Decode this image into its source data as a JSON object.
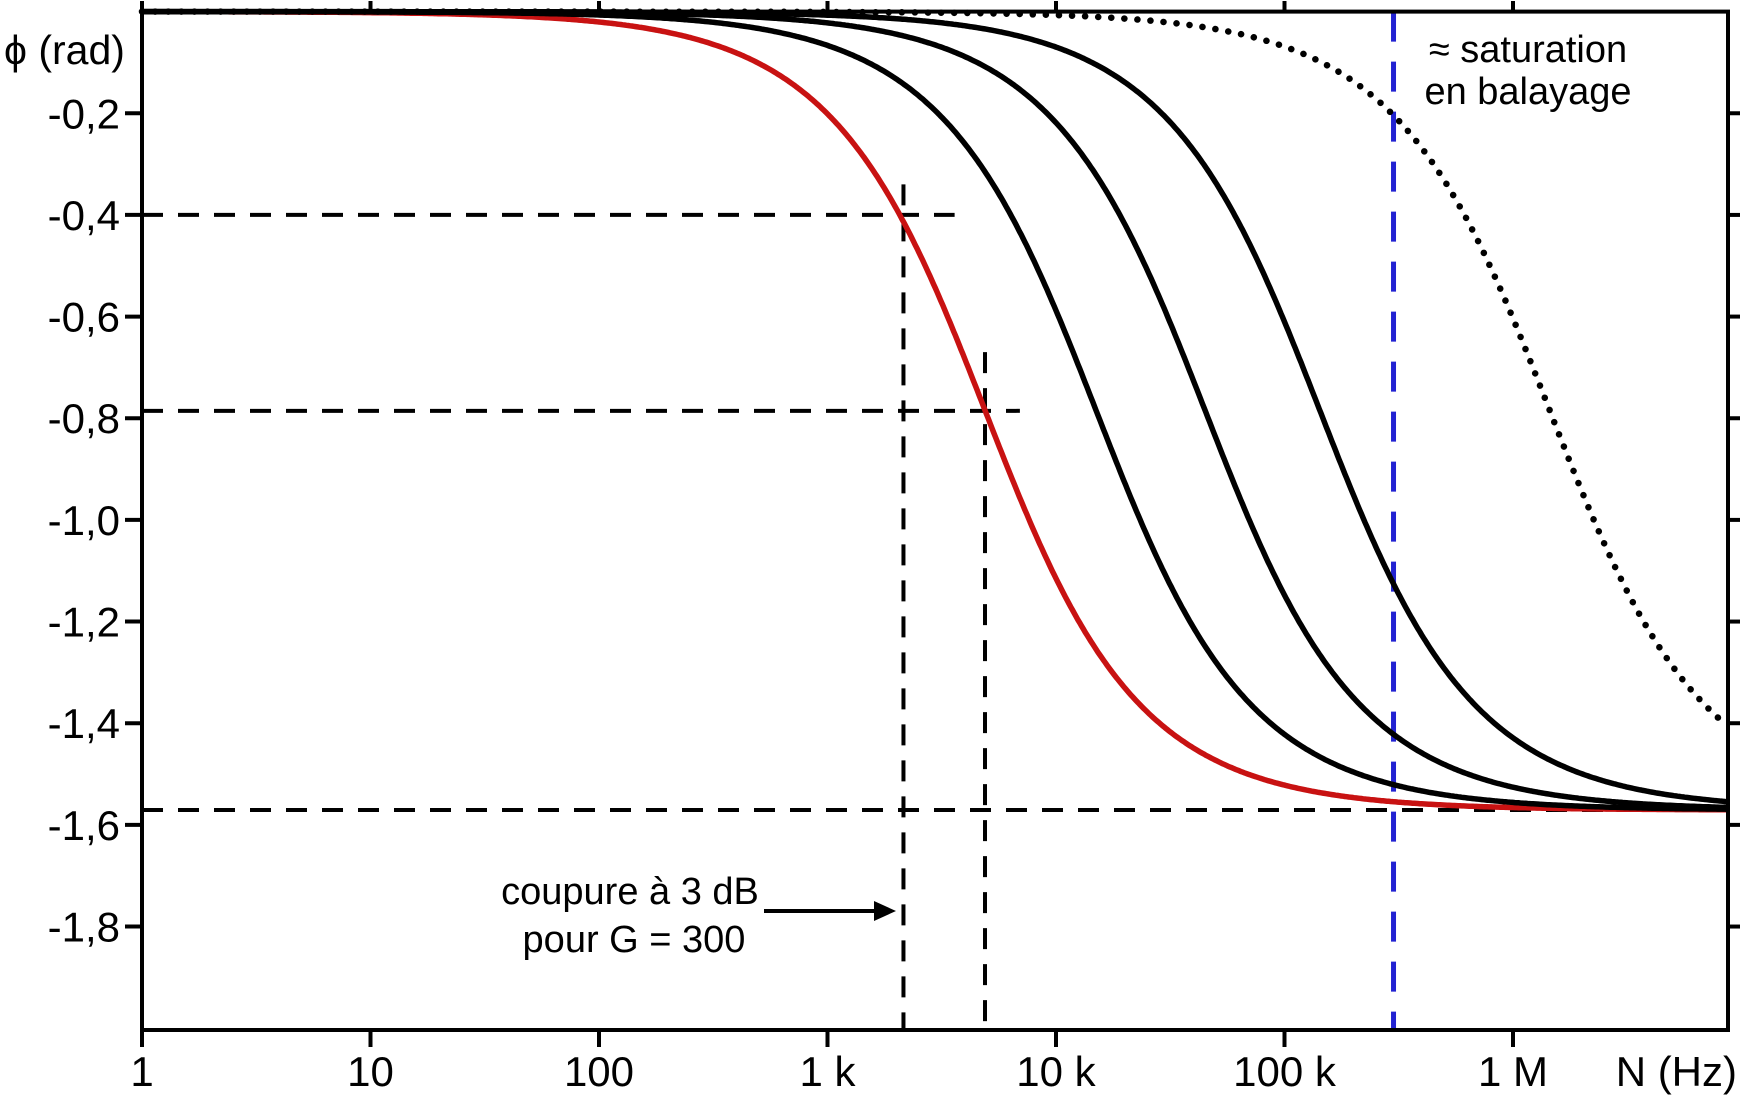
{
  "chart_data": {
    "type": "line",
    "title": "",
    "xlabel": "N  (Hz)",
    "ylabel": "ϕ  (rad)",
    "x_scale": "log",
    "x_range_hz": [
      1,
      8700000
    ],
    "y_range_rad": [
      -2.0,
      0
    ],
    "grid": "off",
    "legend": "none",
    "phase_model": "phi(N) = -atan(N / fc)",
    "x_ticks": [
      {
        "value": 1,
        "label": "1"
      },
      {
        "value": 10,
        "label": "10"
      },
      {
        "value": 100,
        "label": "100"
      },
      {
        "value": 1000,
        "label": "1 k"
      },
      {
        "value": 10000,
        "label": "10 k"
      },
      {
        "value": 100000,
        "label": "100 k"
      },
      {
        "value": 1000000,
        "label": "1 M"
      }
    ],
    "y_ticks": [
      {
        "value": -0.2,
        "label": "-0,2"
      },
      {
        "value": -0.4,
        "label": "-0,4"
      },
      {
        "value": -0.6,
        "label": "-0,6"
      },
      {
        "value": -0.8,
        "label": "-0,8"
      },
      {
        "value": -1.0,
        "label": "-1,0"
      },
      {
        "value": -1.2,
        "label": "-1,2"
      },
      {
        "value": -1.4,
        "label": "-1,4"
      },
      {
        "value": -1.6,
        "label": "-1,6"
      },
      {
        "value": -1.8,
        "label": "-1,8"
      }
    ],
    "series": [
      {
        "name": "red-curve-G-300",
        "fc_hz": 4900,
        "color": "#c81212",
        "style": "solid",
        "width": 5.5
      },
      {
        "name": "black-curve-1",
        "fc_hz": 15000,
        "color": "#000000",
        "style": "solid",
        "width": 5.5
      },
      {
        "name": "black-curve-2",
        "fc_hz": 45000,
        "color": "#000000",
        "style": "solid",
        "width": 5.5
      },
      {
        "name": "black-curve-3",
        "fc_hz": 143000,
        "color": "#000000",
        "style": "solid",
        "width": 5.5
      },
      {
        "name": "dotted-curve",
        "fc_hz": 1450000,
        "color": "#000000",
        "style": "dotted",
        "width": 6.5
      }
    ],
    "guides": {
      "horizontal_dashed": [
        {
          "phi": -0.4,
          "from_hz": 1,
          "to_hz": 3600
        },
        {
          "phi": -0.7854,
          "from_hz": 1,
          "to_hz": 6950
        },
        {
          "phi": -1.5708,
          "from_hz": 1,
          "to_hz": 8700000
        }
      ],
      "vertical_dashed": [
        {
          "hz": 2150,
          "phi_top": -0.34,
          "color": "#000000"
        },
        {
          "hz": 4890,
          "phi_top": -0.67,
          "color": "#000000"
        },
        {
          "hz": 300000,
          "phi_top": 0.0,
          "color": "#2222d2"
        }
      ]
    }
  },
  "annotations": {
    "cutoff": {
      "line1": "coupure à 3 dB",
      "line2": "pour  G = 300",
      "color": "#000000"
    },
    "saturation": {
      "line1": "≈ saturation",
      "line2": "en balayage",
      "color": "#2222d2"
    }
  },
  "colors": {
    "axis": "#000000",
    "red_curve": "#c81212",
    "blue_accent": "#2222d2",
    "background": "#ffffff"
  }
}
